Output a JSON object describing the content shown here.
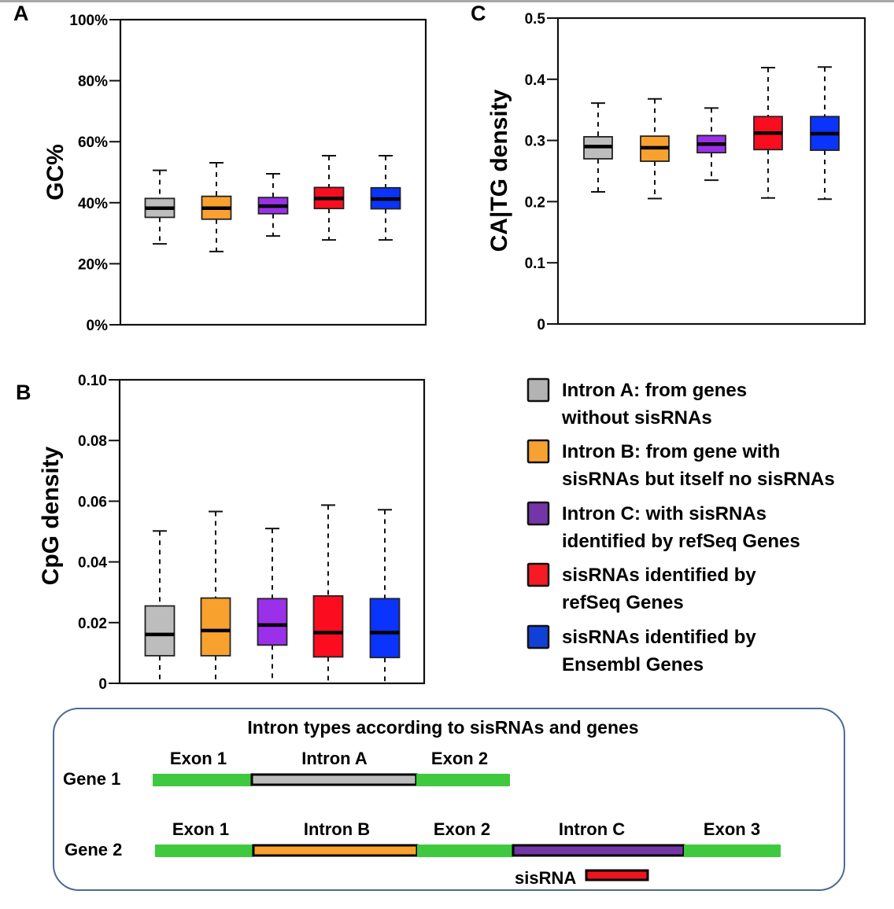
{
  "groups": [
    {
      "key": "intronA",
      "color": "#bdbdbd",
      "legend_color": "#b3b3b3",
      "legend_lines": [
        "Intron A: from genes",
        "without sisRNAs"
      ]
    },
    {
      "key": "intronB",
      "color": "#f9a12e",
      "legend_color": "#f7a230",
      "legend_lines": [
        "Intron B: from gene with",
        "sisRNAs but itself no sisRNAs"
      ]
    },
    {
      "key": "intronC",
      "color": "#9b30ea",
      "legend_color": "#7335a8",
      "legend_lines": [
        "Intron C: with sisRNAs",
        "identified by refSeq Genes"
      ]
    },
    {
      "key": "sisRefSeq",
      "color": "#fb0d1f",
      "legend_color": "#f61a24",
      "legend_lines": [
        "sisRNAs identified by",
        "refSeq Genes"
      ]
    },
    {
      "key": "sisEnsembl",
      "color": "#0a33fb",
      "legend_color": "#1040d6",
      "legend_lines": [
        "sisRNAs identified by",
        "Ensembl Genes"
      ]
    }
  ],
  "chart_data": [
    {
      "panel": "A",
      "type": "box",
      "title": "",
      "xlabel": "",
      "ylabel": "GC%",
      "ylim": [
        0,
        100
      ],
      "yticks": [
        0,
        20,
        40,
        60,
        80,
        100
      ],
      "ytick_labels": [
        "0%",
        "20%",
        "40%",
        "60%",
        "80%",
        "100%"
      ],
      "grid": false,
      "categories": [
        "Intron A",
        "Intron B",
        "Intron C",
        "sisRNAs refSeq",
        "sisRNAs Ensembl"
      ],
      "boxes": [
        {
          "whisker_low": 26.5,
          "q1": 35.2,
          "median": 38.2,
          "q3": 41.4,
          "whisker_high": 50.6
        },
        {
          "whisker_low": 24.0,
          "q1": 34.6,
          "median": 38.2,
          "q3": 42.1,
          "whisker_high": 53.1
        },
        {
          "whisker_low": 29.1,
          "q1": 36.4,
          "median": 38.9,
          "q3": 41.7,
          "whisker_high": 49.5
        },
        {
          "whisker_low": 27.8,
          "q1": 38.1,
          "median": 41.4,
          "q3": 45.0,
          "whisker_high": 55.4
        },
        {
          "whisker_low": 27.8,
          "q1": 38.0,
          "median": 41.2,
          "q3": 44.9,
          "whisker_high": 55.4
        }
      ]
    },
    {
      "panel": "B",
      "type": "box",
      "title": "",
      "xlabel": "",
      "ylabel": "CpG density",
      "ylim": [
        0,
        0.1
      ],
      "yticks": [
        0,
        0.02,
        0.04,
        0.06,
        0.08,
        0.1
      ],
      "ytick_labels": [
        "0",
        "0.02",
        "0.04",
        "0.06",
        "0.08",
        "0.10"
      ],
      "grid": false,
      "categories": [
        "Intron A",
        "Intron B",
        "Intron C",
        "sisRNAs refSeq",
        "sisRNAs Ensembl"
      ],
      "boxes": [
        {
          "whisker_low": 0,
          "q1": 0.0091,
          "median": 0.0161,
          "q3": 0.0255,
          "whisker_high": 0.0502
        },
        {
          "whisker_low": 0,
          "q1": 0.0091,
          "median": 0.0174,
          "q3": 0.0281,
          "whisker_high": 0.0566
        },
        {
          "whisker_low": 0,
          "q1": 0.0126,
          "median": 0.0192,
          "q3": 0.0279,
          "whisker_high": 0.051
        },
        {
          "whisker_low": 0,
          "q1": 0.0087,
          "median": 0.0167,
          "q3": 0.0288,
          "whisker_high": 0.0587
        },
        {
          "whisker_low": 0,
          "q1": 0.0085,
          "median": 0.0167,
          "q3": 0.0279,
          "whisker_high": 0.0572
        }
      ]
    },
    {
      "panel": "C",
      "type": "box",
      "title": "",
      "xlabel": "",
      "ylabel": "CA|TG density",
      "ylim": [
        0,
        0.5
      ],
      "yticks": [
        0,
        0.1,
        0.2,
        0.3,
        0.4,
        0.5
      ],
      "ytick_labels": [
        "0",
        "0.1",
        "0.2",
        "0.3",
        "0.4",
        "0.5"
      ],
      "grid": false,
      "categories": [
        "Intron A",
        "Intron B",
        "Intron C",
        "sisRNAs refSeq",
        "sisRNAs Ensembl"
      ],
      "boxes": [
        {
          "whisker_low": 0.216,
          "q1": 0.27,
          "median": 0.29,
          "q3": 0.306,
          "whisker_high": 0.361
        },
        {
          "whisker_low": 0.205,
          "q1": 0.266,
          "median": 0.288,
          "q3": 0.307,
          "whisker_high": 0.368
        },
        {
          "whisker_low": 0.235,
          "q1": 0.28,
          "median": 0.294,
          "q3": 0.308,
          "whisker_high": 0.353
        },
        {
          "whisker_low": 0.206,
          "q1": 0.285,
          "median": 0.312,
          "q3": 0.339,
          "whisker_high": 0.419
        },
        {
          "whisker_low": 0.204,
          "q1": 0.284,
          "median": 0.311,
          "q3": 0.339,
          "whisker_high": 0.42
        }
      ]
    }
  ],
  "diagram": {
    "title": "Intron types according to sisRNAs and genes",
    "exon_color": "#3ec93e",
    "sisrna_color": "#f0141e",
    "intronC_color": "#7336a6",
    "gene1": {
      "label": "Gene 1",
      "segments": [
        {
          "label": "Exon 1",
          "kind": "exon"
        },
        {
          "label": "Intron A",
          "kind": "intron",
          "group": 0
        },
        {
          "label": "Exon 2",
          "kind": "exon"
        }
      ]
    },
    "gene2": {
      "label": "Gene 2",
      "segments": [
        {
          "label": "Exon 1",
          "kind": "exon"
        },
        {
          "label": "Intron B",
          "kind": "intron",
          "group": 1
        },
        {
          "label": "Exon 2",
          "kind": "exon"
        },
        {
          "label": "Intron C",
          "kind": "intron",
          "group": 2
        },
        {
          "label": "Exon 3",
          "kind": "exon"
        }
      ]
    },
    "sisrna_label": "sisRNA"
  }
}
